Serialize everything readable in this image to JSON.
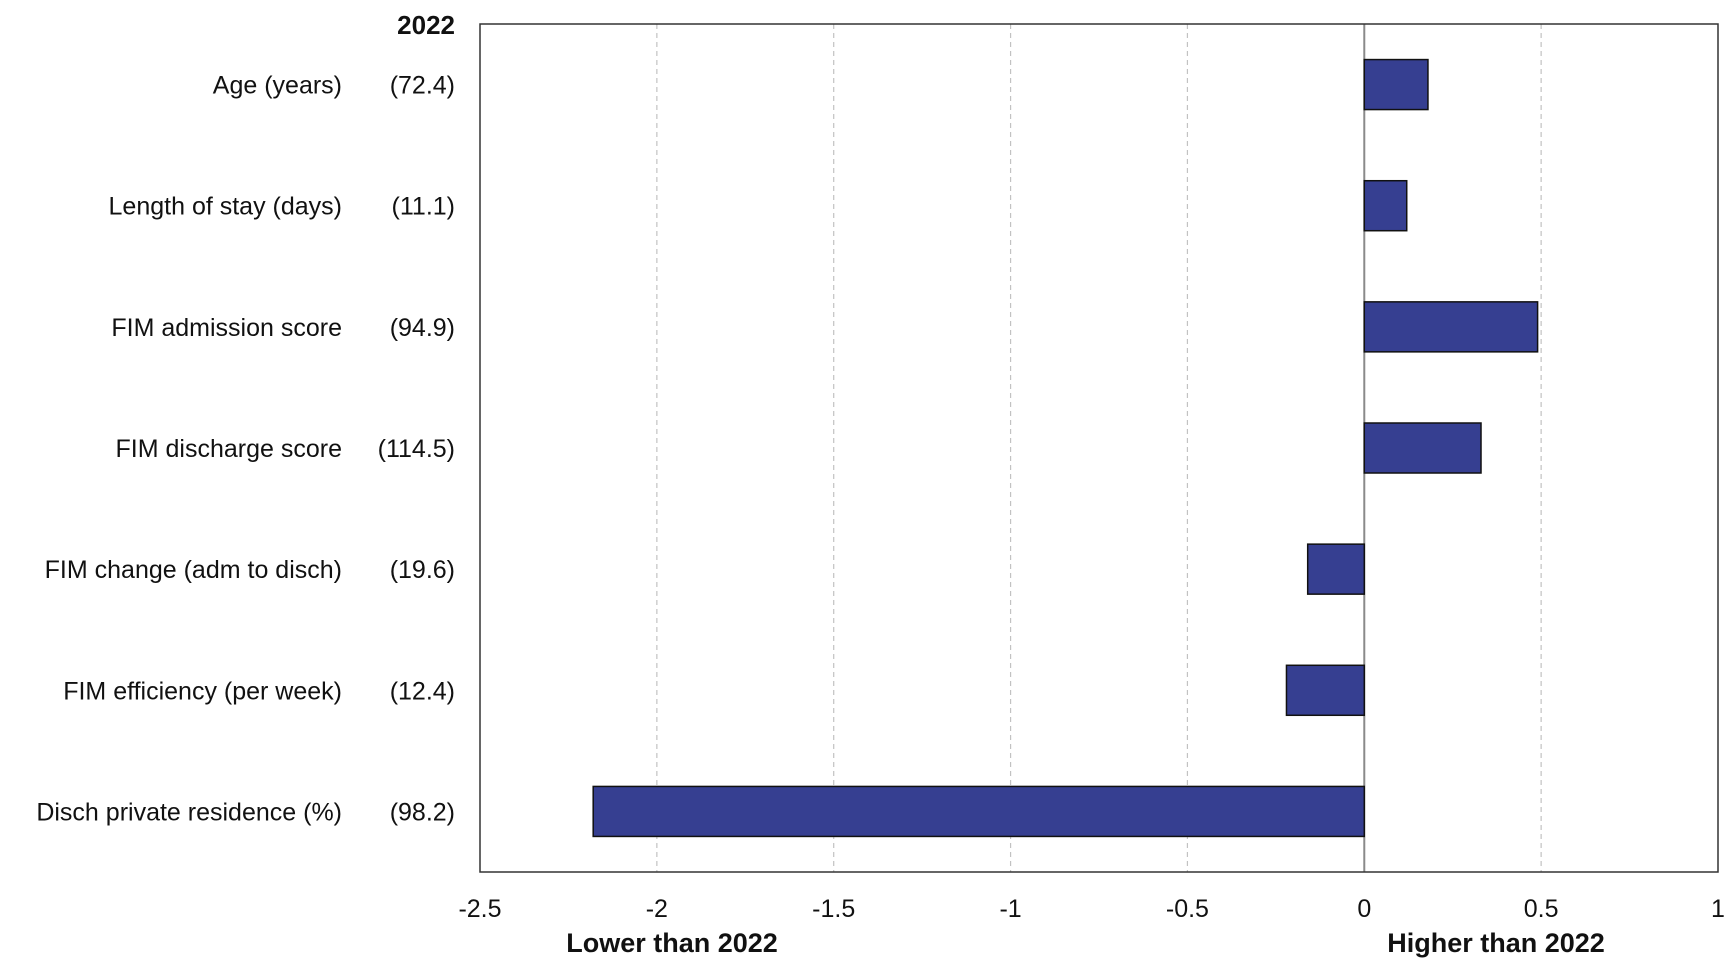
{
  "chart_data": {
    "type": "bar",
    "orientation": "horizontal",
    "reference_header": "2022",
    "categories": [
      "Age (years)",
      "Length of stay (days)",
      "FIM admission score",
      "FIM discharge score",
      "FIM change (adm to disch)",
      "FIM efficiency (per week)",
      "Disch private residence (%)"
    ],
    "reference_values": [
      "(72.4)",
      "(11.1)",
      "(94.9)",
      "(114.5)",
      "(19.6)",
      "(12.4)",
      "(98.2)"
    ],
    "values": [
      0.18,
      0.12,
      0.49,
      0.33,
      -0.16,
      -0.22,
      -2.18
    ],
    "xlim": [
      -2.5,
      1
    ],
    "xticks": [
      -2.5,
      -2,
      -1.5,
      -1,
      -0.5,
      0,
      0.5,
      1
    ],
    "xtick_labels": [
      "-2.5",
      "-2",
      "-1.5",
      "-1",
      "-0.5",
      "0",
      "0.5",
      "1"
    ],
    "grid": "vertical dashed",
    "bar_color": "#363f91",
    "direction_labels": {
      "left": "Lower than 2022",
      "right": "Higher than 2022"
    }
  }
}
